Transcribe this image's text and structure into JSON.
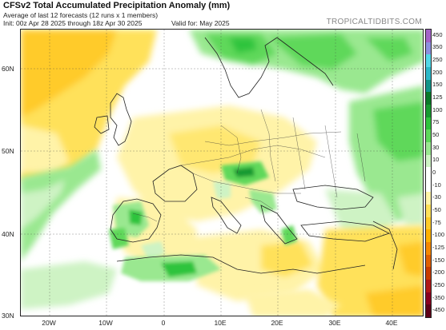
{
  "header": {
    "title": "CFSv2 Total Accumulated Precipitation Anomaly (mm)",
    "subtitle": "Average of last 12 forecasts (12 runs x 1 members)",
    "init": "Init: 00z Apr 28 2025 through 18z Apr 30 2025",
    "valid": "Valid for: May 2025",
    "brand": "TROPICALTIDBITS.COM"
  },
  "map": {
    "lat_labels": [
      "60N",
      "50N",
      "40N",
      "30N"
    ],
    "lon_labels": [
      "20W",
      "10W",
      "0",
      "10E",
      "20E",
      "30E",
      "40E"
    ]
  },
  "colorbar": {
    "labels": [
      "450",
      "350",
      "250",
      "200",
      "150",
      "125",
      "100",
      "75",
      "50",
      "30",
      "10",
      "0",
      "-10",
      "-30",
      "-50",
      "-75",
      "-100",
      "-125",
      "-150",
      "-200",
      "-250",
      "-350",
      "-450"
    ],
    "colors": [
      "#a463c8",
      "#8d8fe0",
      "#52d8e8",
      "#2cb8c8",
      "#119488",
      "#0a7a28",
      "#179a30",
      "#2ec43c",
      "#5ed85a",
      "#9ae890",
      "#cef3c4",
      "#ffffff",
      "#ffffff",
      "#fff3a8",
      "#ffe15a",
      "#ffcb2a",
      "#ffb000",
      "#f58800",
      "#e06000",
      "#c83c00",
      "#b01818",
      "#8a0020",
      "#5e0018"
    ]
  }
}
